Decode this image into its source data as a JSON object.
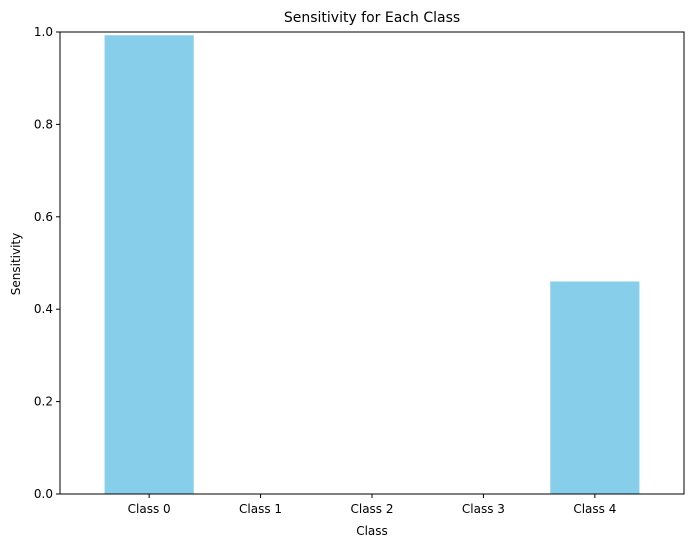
{
  "chart_data": {
    "type": "bar",
    "title": "Sensitivity for Each Class",
    "xlabel": "Class",
    "ylabel": "Sensitivity",
    "categories": [
      "Class 0",
      "Class 1",
      "Class 2",
      "Class 3",
      "Class 4"
    ],
    "values": [
      0.993,
      0.0,
      0.0,
      0.0,
      0.46
    ],
    "ylim": [
      0,
      1.0
    ],
    "yticks": [
      0.0,
      0.2,
      0.4,
      0.6,
      0.8,
      1.0
    ],
    "ytick_labels": [
      "0.0",
      "0.2",
      "0.4",
      "0.6",
      "0.8",
      "1.0"
    ],
    "grid": false,
    "bar_color": "#87ceeb"
  }
}
